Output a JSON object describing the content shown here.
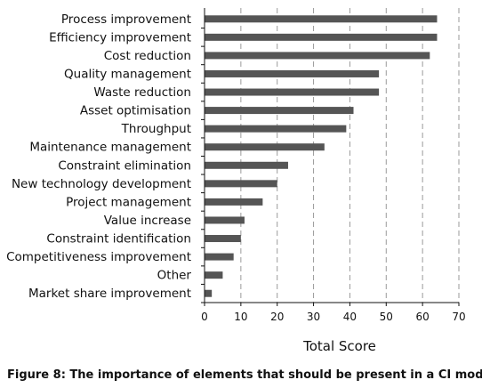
{
  "caption": "Figure 8: The importance of elements that should be present in a CI model",
  "chart_data": {
    "type": "bar",
    "orientation": "horizontal",
    "categories": [
      "Process improvement",
      "Efficiency improvement",
      "Cost reduction",
      "Quality management",
      "Waste reduction",
      "Asset optimisation",
      "Throughput",
      "Maintenance management",
      "Constraint elimination",
      "New technology development",
      "Project management",
      "Value increase",
      "Constraint identification",
      "Competitiveness improvement",
      "Other",
      "Market share improvement"
    ],
    "values": [
      64,
      64,
      62,
      48,
      48,
      41,
      39,
      33,
      23,
      20,
      16,
      11,
      10,
      8,
      5,
      2
    ],
    "xlabel": "Total Score",
    "ylabel": "",
    "xlim": [
      0,
      70
    ],
    "xticks": [
      0,
      10,
      20,
      30,
      40,
      50,
      60,
      70
    ],
    "grid": "vertical dashed",
    "bar_color": "#555555",
    "grid_color": "#9a9a9a"
  }
}
